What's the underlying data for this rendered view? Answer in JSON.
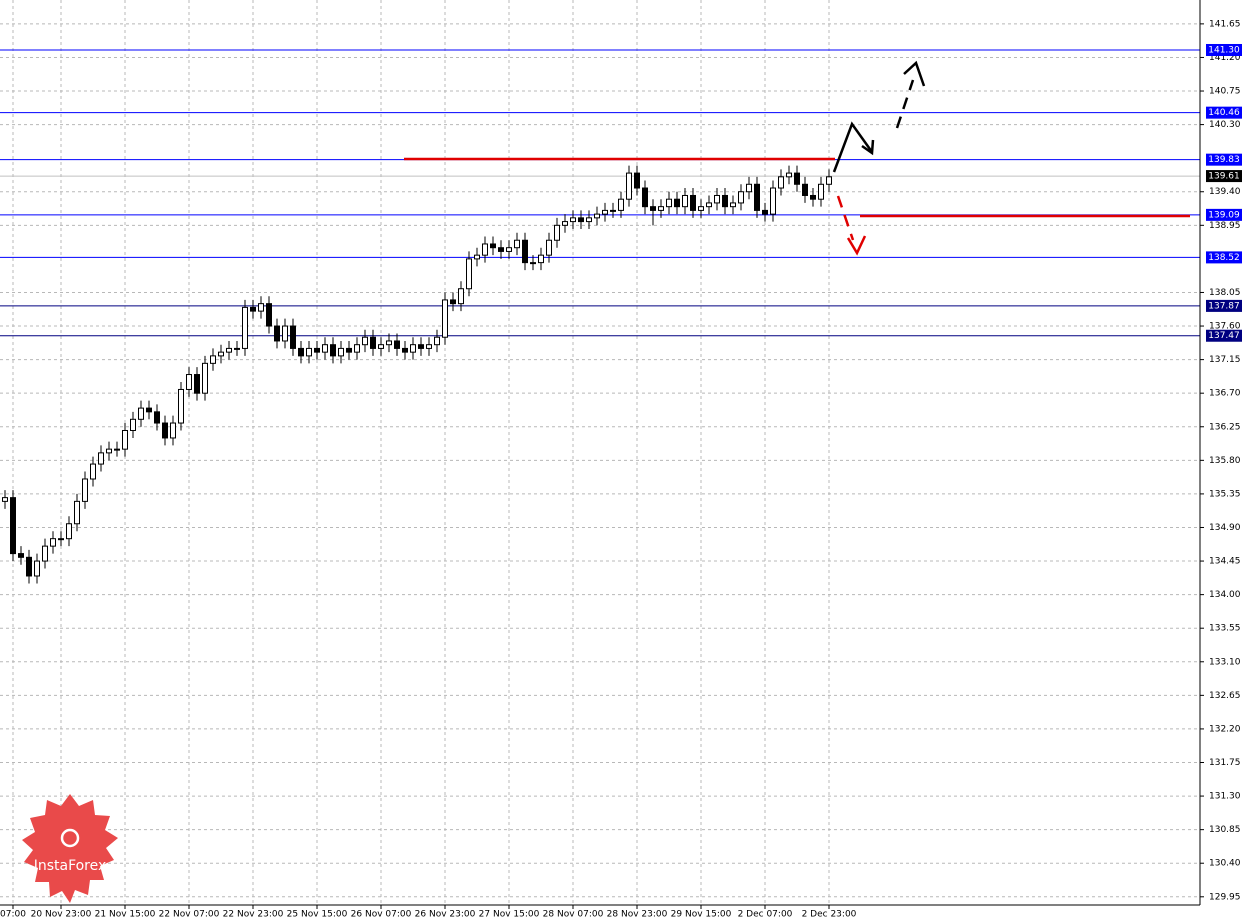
{
  "chart_data": {
    "type": "candlestick",
    "categories": [
      null,
      "07:00",
      null,
      null,
      null,
      null,
      null,
      "20 Nov 23:00",
      null,
      null,
      null,
      null,
      null,
      null,
      null,
      "21 Nov 15:00",
      null,
      null,
      null,
      null,
      null,
      null,
      null,
      "22 Nov 07:00",
      null,
      null,
      null,
      null,
      null,
      null,
      null,
      "22 Nov 23:00",
      null,
      null,
      null,
      null,
      null,
      null,
      null,
      "25 Nov 15:00",
      null,
      null,
      null,
      null,
      null,
      null,
      null,
      "26 Nov 07:00",
      null,
      null,
      null,
      null,
      null,
      null,
      null,
      "26 Nov 23:00",
      null,
      null,
      null,
      null,
      null,
      null,
      null,
      "27 Nov 15:00",
      null,
      null,
      null,
      null,
      null,
      null,
      null,
      "28 Nov 07:00",
      null,
      null,
      null,
      null,
      null,
      null,
      null,
      "28 Nov 23:00",
      null,
      null,
      null,
      null,
      null,
      null,
      null,
      "29 Nov 15:00",
      null,
      null,
      null,
      null,
      null,
      null,
      null,
      "2 Dec 07:00",
      null,
      null,
      null,
      null,
      null,
      null,
      null,
      "2 Dec 23:00"
    ],
    "open": [
      135.25,
      135.3,
      134.55,
      134.5,
      134.25,
      134.45,
      134.65,
      134.75,
      134.75,
      134.95,
      135.25,
      135.55,
      135.75,
      135.9,
      135.95,
      135.95,
      136.2,
      136.35,
      136.5,
      136.45,
      136.3,
      136.1,
      136.3,
      136.75,
      136.95,
      136.7,
      137.1,
      137.2,
      137.25,
      137.3,
      137.3,
      137.85,
      137.8,
      137.9,
      137.6,
      137.4,
      137.6,
      137.3,
      137.2,
      137.3,
      137.25,
      137.35,
      137.2,
      137.3,
      137.25,
      137.35,
      137.45,
      137.3,
      137.35,
      137.4,
      137.3,
      137.25,
      137.35,
      137.3,
      137.35,
      137.45,
      137.95,
      137.9,
      138.1,
      138.5,
      138.55,
      138.7,
      138.65,
      138.6,
      138.65,
      138.75,
      138.45,
      138.45,
      138.55,
      138.75,
      138.95,
      139,
      139.05,
      139,
      139.05,
      139.1,
      139.15,
      139.15,
      139.3,
      139.65,
      139.45,
      139.2,
      139.15,
      139.2,
      139.3,
      139.2,
      139.35,
      139.15,
      139.2,
      139.25,
      139.35,
      139.2,
      139.25,
      139.4,
      139.5,
      139.15,
      139.1,
      139.45,
      139.6,
      139.65,
      139.5,
      139.35,
      139.3,
      139.5
    ],
    "high": [
      135.4,
      135.4,
      134.65,
      134.6,
      134.55,
      134.75,
      134.85,
      134.85,
      135.05,
      135.35,
      135.65,
      135.85,
      136,
      136.05,
      136.05,
      136.3,
      136.45,
      136.6,
      136.6,
      136.55,
      136.4,
      136.4,
      136.85,
      137.05,
      137.05,
      137.2,
      137.3,
      137.35,
      137.4,
      137.4,
      137.95,
      137.95,
      138,
      138,
      137.7,
      137.7,
      137.7,
      137.4,
      137.4,
      137.4,
      137.45,
      137.45,
      137.4,
      137.4,
      137.45,
      137.55,
      137.55,
      137.45,
      137.5,
      137.5,
      137.4,
      137.45,
      137.45,
      137.45,
      137.55,
      138.05,
      138.05,
      138.2,
      138.6,
      138.65,
      138.8,
      138.8,
      138.75,
      138.75,
      138.85,
      138.85,
      138.55,
      138.65,
      138.85,
      139.05,
      139.1,
      139.15,
      139.15,
      139.15,
      139.2,
      139.25,
      139.25,
      139.4,
      139.75,
      139.75,
      139.55,
      139.3,
      139.3,
      139.4,
      139.4,
      139.45,
      139.45,
      139.3,
      139.35,
      139.45,
      139.45,
      139.35,
      139.5,
      139.6,
      139.6,
      139.25,
      139.55,
      139.7,
      139.75,
      139.75,
      139.6,
      139.45,
      139.6,
      139.7
    ],
    "low": [
      135.15,
      134.45,
      134.4,
      134.15,
      134.15,
      134.35,
      134.55,
      134.65,
      134.65,
      134.85,
      135.15,
      135.45,
      135.65,
      135.8,
      135.85,
      135.85,
      136.1,
      136.25,
      136.35,
      136.2,
      136,
      136,
      136.2,
      136.65,
      136.6,
      136.6,
      137,
      137.1,
      137.15,
      137.2,
      137.2,
      137.7,
      137.7,
      137.5,
      137.3,
      137.3,
      137.2,
      137.1,
      137.1,
      137.15,
      137.15,
      137.1,
      137.1,
      137.15,
      137.15,
      137.25,
      137.2,
      137.2,
      137.25,
      137.2,
      137.15,
      137.15,
      137.2,
      137.2,
      137.25,
      137.35,
      137.8,
      137.8,
      138,
      138.4,
      138.45,
      138.55,
      138.5,
      138.5,
      138.55,
      138.35,
      138.35,
      138.35,
      138.45,
      138.65,
      138.85,
      138.9,
      138.9,
      138.9,
      138.95,
      139,
      139.05,
      139.05,
      139.2,
      139.35,
      139.1,
      138.95,
      139.05,
      139.1,
      139.1,
      139.1,
      139.05,
      139.05,
      139.1,
      139.15,
      139.1,
      139.1,
      139.15,
      139.3,
      139.05,
      139,
      139,
      139.35,
      139.5,
      139.4,
      139.25,
      139.2,
      139.2,
      139.4
    ],
    "close": [
      135.3,
      134.55,
      134.5,
      134.25,
      134.45,
      134.65,
      134.75,
      134.75,
      134.95,
      135.25,
      135.55,
      135.75,
      135.9,
      135.95,
      135.95,
      136.2,
      136.35,
      136.5,
      136.45,
      136.3,
      136.1,
      136.3,
      136.75,
      136.95,
      136.7,
      137.1,
      137.2,
      137.25,
      137.3,
      137.3,
      137.85,
      137.8,
      137.9,
      137.6,
      137.4,
      137.6,
      137.3,
      137.2,
      137.3,
      137.25,
      137.35,
      137.2,
      137.3,
      137.25,
      137.35,
      137.45,
      137.3,
      137.35,
      137.4,
      137.3,
      137.25,
      137.35,
      137.3,
      137.35,
      137.45,
      137.95,
      137.9,
      138.1,
      138.5,
      138.55,
      138.7,
      138.65,
      138.6,
      138.65,
      138.75,
      138.45,
      138.45,
      138.55,
      138.75,
      138.95,
      139,
      139.05,
      139,
      139.05,
      139.1,
      139.15,
      139.15,
      139.3,
      139.65,
      139.45,
      139.2,
      139.15,
      139.2,
      139.3,
      139.2,
      139.35,
      139.15,
      139.2,
      139.25,
      139.35,
      139.2,
      139.25,
      139.4,
      139.5,
      139.15,
      139.1,
      139.45,
      139.6,
      139.65,
      139.5,
      139.35,
      139.3,
      139.5,
      139.6
    ],
    "up_color": "#ffffff",
    "down_color": "#000000",
    "wick_color": "#000000",
    "ylim": [
      129.84,
      141.97
    ],
    "yticks": [
      129.95,
      {
        "value": 130.4,
        "label": "130.40"
      },
      130.85,
      {
        "value": 131.3,
        "label": "131.30"
      },
      131.75,
      {
        "value": 132.2,
        "label": "132.20"
      },
      132.65,
      {
        "value": 133.1,
        "label": "133.10"
      },
      133.55,
      {
        "value": 134,
        "label": "134.00"
      },
      134.45,
      {
        "value": 134.9,
        "label": "134.90"
      },
      135.35,
      {
        "value": 135.8,
        "label": "135.80"
      },
      136.25,
      {
        "value": 136.7,
        "label": "136.70"
      },
      137.15,
      {
        "value": 137.6,
        "label": "137.60"
      },
      138.05,
      138.95,
      {
        "value": 139.4,
        "label": "139.40"
      },
      {
        "value": 140.3,
        "label": "140.30"
      },
      140.75,
      {
        "value": 141.2,
        "label": "141.20"
      },
      141.65
    ],
    "grid": true,
    "levels": [
      {
        "value": 141.3,
        "label": "141.30",
        "color": "#0000ff"
      },
      {
        "value": 140.46,
        "label": "140.46",
        "color": "#0000ff"
      },
      {
        "value": 139.83,
        "label": "139.83",
        "color": "#0000ff"
      },
      {
        "value": 139.09,
        "label": "139.09",
        "color": "#0000ff"
      },
      {
        "value": 138.52,
        "label": "138.52",
        "color": "#0000ff"
      },
      {
        "value": 137.87,
        "label": "137.87",
        "color": "#000080"
      },
      {
        "value": 137.47,
        "label": "137.47",
        "color": "#000080"
      }
    ],
    "current_price": {
      "value": 139.61,
      "label": "139.61",
      "color": "#c0c0c0"
    },
    "watermark": "InstaForex"
  }
}
